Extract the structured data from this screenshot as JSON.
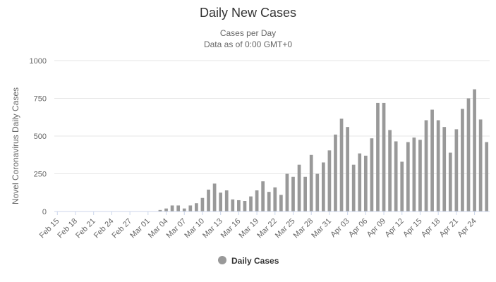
{
  "chart_data": {
    "type": "bar",
    "title": "Daily New Cases",
    "subtitle_line1": "Cases per Day",
    "subtitle_line2": "Data as of 0:00 GMT+0",
    "ylabel": "Novel Coronavirus Daily Cases",
    "xlabel": "",
    "ylim": [
      0,
      1000
    ],
    "yticks": [
      0,
      250,
      500,
      750,
      1000
    ],
    "ytick_labels": [
      "0",
      "250",
      "500",
      "750",
      "1000"
    ],
    "categories": [
      "Feb 15",
      "Feb 16",
      "Feb 17",
      "Feb 18",
      "Feb 19",
      "Feb 20",
      "Feb 21",
      "Feb 22",
      "Feb 23",
      "Feb 24",
      "Feb 25",
      "Feb 26",
      "Feb 27",
      "Feb 28",
      "Feb 29",
      "Mar 01",
      "Mar 02",
      "Mar 03",
      "Mar 04",
      "Mar 05",
      "Mar 06",
      "Mar 07",
      "Mar 08",
      "Mar 09",
      "Mar 10",
      "Mar 11",
      "Mar 12",
      "Mar 13",
      "Mar 14",
      "Mar 15",
      "Mar 16",
      "Mar 17",
      "Mar 18",
      "Mar 19",
      "Mar 20",
      "Mar 21",
      "Mar 22",
      "Mar 23",
      "Mar 24",
      "Mar 25",
      "Mar 26",
      "Mar 27",
      "Mar 28",
      "Mar 29",
      "Mar 30",
      "Mar 31",
      "Apr 01",
      "Apr 02",
      "Apr 03",
      "Apr 04",
      "Apr 05",
      "Apr 06",
      "Apr 07",
      "Apr 08",
      "Apr 09",
      "Apr 10",
      "Apr 11",
      "Apr 12",
      "Apr 13",
      "Apr 14",
      "Apr 15",
      "Apr 16",
      "Apr 17",
      "Apr 18",
      "Apr 19",
      "Apr 20",
      "Apr 21",
      "Apr 22",
      "Apr 23",
      "Apr 24",
      "Apr 25",
      "Apr 26"
    ],
    "x_tick_labels": [
      "Feb 15",
      "Feb 18",
      "Feb 21",
      "Feb 24",
      "Feb 27",
      "Mar 01",
      "Mar 04",
      "Mar 07",
      "Mar 10",
      "Mar 13",
      "Mar 16",
      "Mar 19",
      "Mar 22",
      "Mar 25",
      "Mar 28",
      "Mar 31",
      "Apr 03",
      "Apr 06",
      "Apr 09",
      "Apr 12",
      "Apr 15",
      "Apr 18",
      "Apr 21",
      "Apr 24"
    ],
    "series": [
      {
        "name": "Daily Cases",
        "color": "#999999",
        "values": [
          0,
          0,
          0,
          0,
          0,
          0,
          0,
          0,
          0,
          0,
          0,
          0,
          0,
          0,
          0,
          0,
          0,
          10,
          20,
          40,
          40,
          20,
          40,
          55,
          90,
          145,
          185,
          125,
          140,
          80,
          75,
          70,
          100,
          140,
          200,
          130,
          160,
          110,
          250,
          230,
          310,
          230,
          375,
          250,
          325,
          405,
          510,
          615,
          560,
          310,
          385,
          370,
          485,
          720,
          720,
          540,
          465,
          330,
          460,
          490,
          475,
          605,
          675,
          605,
          560,
          390,
          545,
          680,
          750,
          810,
          610,
          460
        ]
      }
    ],
    "legend": {
      "label": "Daily Cases",
      "position": "bottom-center"
    },
    "grid": true
  }
}
